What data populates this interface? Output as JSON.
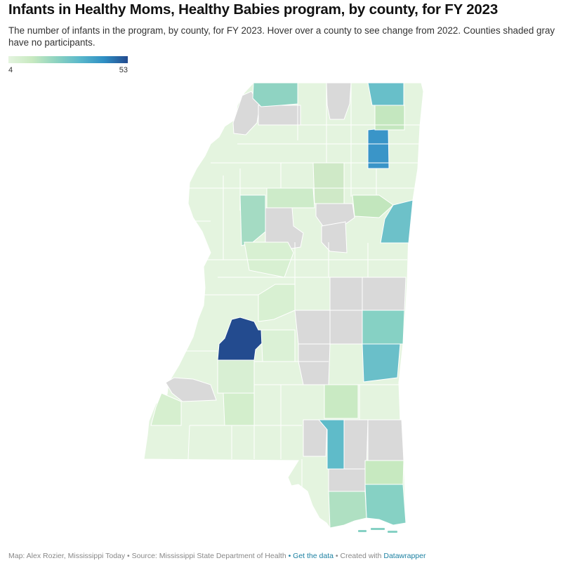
{
  "header": {
    "title": "Infants in Healthy Moms, Healthy Babies program, by county, for FY 2023",
    "subtitle": "The number of infants in the program, by county, for FY 2023. Hover over a county to see change from 2022. Counties shaded gray have no participants."
  },
  "legend": {
    "min": "4",
    "max": "53",
    "colors": [
      "#e4f4df",
      "#c7e9c0",
      "#8dd3c0",
      "#5ab8cb",
      "#2f8fc4",
      "#234b8f"
    ]
  },
  "map": {
    "no_data_color": "#d9d9d9",
    "low_color": "#e4f4df",
    "highlighted": [
      {
        "level": "max",
        "value": 53,
        "color": "#234b8f"
      },
      {
        "level": "high",
        "color": "#3a95c8"
      },
      {
        "level": "mid-high",
        "color": "#68bfc9"
      },
      {
        "level": "mid",
        "color": "#86d1c4"
      }
    ]
  },
  "footer": {
    "credit": "Map: Alex Rozier, Mississippi Today",
    "source": "• Source: Mississippi State Department of Health",
    "get_data": "• Get the data",
    "created_with": "• Created with",
    "tool": "Datawrapper"
  }
}
